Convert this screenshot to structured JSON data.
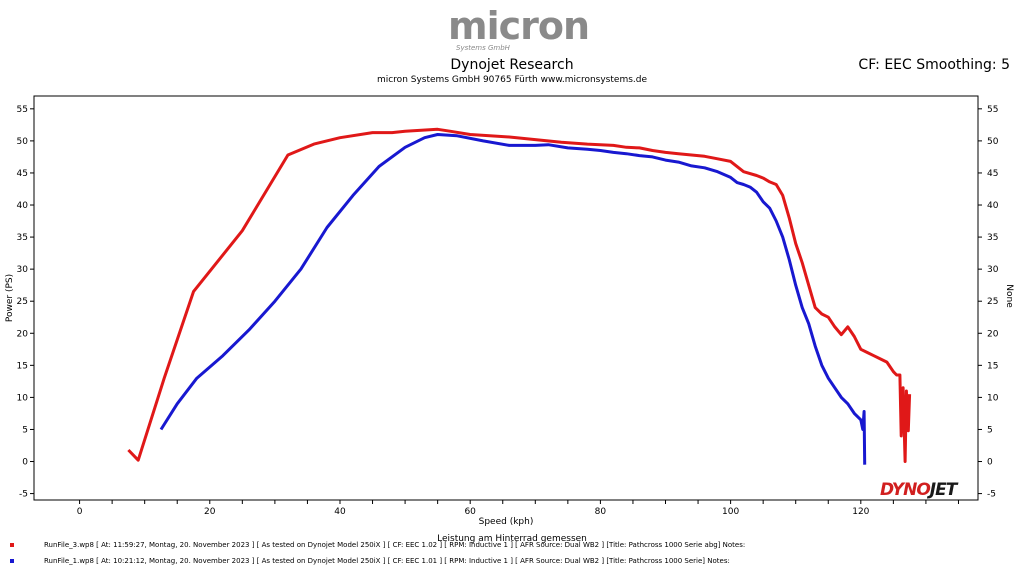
{
  "header": {
    "logo_text": "micron",
    "logo_subtext": "Systems GmbH",
    "title": "Dynojet Research",
    "subtitle": "micron Systems GmbH  90765 Fürth www.micronsystems.de",
    "cf_info": "CF: EEC Smoothing: 5"
  },
  "brand": {
    "part1": "DYNO",
    "part2": "JET"
  },
  "legend": {
    "caption": "Leistung am Hinterrad gemessen",
    "runs": [
      {
        "color": "#e01818",
        "text": "RunFile_3.wp8  [ At:  11:59:27, Montag, 20. November 2023 ]  [ As tested on Dynojet Model 250iX ]  [ CF: EEC 1.02 ]  [ RPM: Inductive 1 ]  [ AFR Source: Dual WB2 ]  [Title: Pathcross 1000 Serie abg]   Notes:"
      },
      {
        "color": "#1818d0",
        "text": "RunFile_1.wp8  [ At:  10:21:12, Montag, 20. November 2023 ]  [ As tested on Dynojet Model 250iX ]  [ CF: EEC 1.01 ]  [ RPM: Inductive 1 ]  [ AFR Source: Dual WB2 ]  [Title: Pathcross 1000 Serie]   Notes:"
      }
    ]
  },
  "chart_data": {
    "type": "line",
    "xlabel": "Speed (kph)",
    "ylabel": "Power (PS)",
    "y2label": "None",
    "xlim": [
      -7,
      138
    ],
    "ylim": [
      -6,
      57
    ],
    "xticks": [
      0,
      20,
      40,
      60,
      80,
      100,
      120
    ],
    "x_minor_step": 5,
    "yticks": [
      -5,
      0,
      5,
      10,
      15,
      20,
      25,
      30,
      35,
      40,
      45,
      50,
      55
    ],
    "grid": false,
    "series": [
      {
        "color": "#e01818",
        "points": [
          [
            7.5,
            1.8
          ],
          [
            9,
            0.2
          ],
          [
            13,
            13
          ],
          [
            17.5,
            26.5
          ],
          [
            25,
            36
          ],
          [
            32,
            47.8
          ],
          [
            36,
            49.5
          ],
          [
            40,
            50.5
          ],
          [
            45,
            51.3
          ],
          [
            48,
            51.3
          ],
          [
            50,
            51.5
          ],
          [
            55,
            51.8
          ],
          [
            57,
            51.5
          ],
          [
            60,
            51
          ],
          [
            63,
            50.8
          ],
          [
            66,
            50.6
          ],
          [
            70,
            50.2
          ],
          [
            74,
            49.8
          ],
          [
            78,
            49.5
          ],
          [
            82,
            49.3
          ],
          [
            84,
            49
          ],
          [
            86,
            48.9
          ],
          [
            88,
            48.5
          ],
          [
            90,
            48.2
          ],
          [
            92,
            48
          ],
          [
            94,
            47.8
          ],
          [
            96,
            47.6
          ],
          [
            98,
            47.2
          ],
          [
            100,
            46.8
          ],
          [
            102,
            45.2
          ],
          [
            104,
            44.6
          ],
          [
            105,
            44.2
          ],
          [
            106,
            43.6
          ],
          [
            107,
            43.2
          ],
          [
            108,
            41.5
          ],
          [
            109,
            38
          ],
          [
            110,
            34
          ],
          [
            111,
            31
          ],
          [
            112,
            27.5
          ],
          [
            113,
            24
          ],
          [
            114,
            23
          ],
          [
            115,
            22.5
          ],
          [
            116,
            21
          ],
          [
            117,
            19.8
          ],
          [
            118,
            21
          ],
          [
            119,
            19.5
          ],
          [
            120,
            17.5
          ],
          [
            121,
            17
          ],
          [
            122,
            16.5
          ],
          [
            123,
            16
          ],
          [
            124,
            15.5
          ],
          [
            125,
            14
          ],
          [
            125.5,
            13.5
          ],
          [
            126,
            13.5
          ],
          [
            126.2,
            4
          ],
          [
            126.5,
            11.5
          ],
          [
            126.8,
            0
          ],
          [
            127,
            11
          ],
          [
            127.3,
            4.8
          ],
          [
            127.5,
            10.5
          ]
        ]
      },
      {
        "color": "#1818d0",
        "points": [
          [
            12.5,
            5
          ],
          [
            15,
            9
          ],
          [
            18,
            13
          ],
          [
            22,
            16.5
          ],
          [
            26,
            20.5
          ],
          [
            30,
            25
          ],
          [
            34,
            30
          ],
          [
            38,
            36.5
          ],
          [
            42,
            41.5
          ],
          [
            46,
            46
          ],
          [
            50,
            49
          ],
          [
            53,
            50.5
          ],
          [
            55,
            51
          ],
          [
            58,
            50.8
          ],
          [
            62,
            50
          ],
          [
            66,
            49.3
          ],
          [
            70,
            49.3
          ],
          [
            72,
            49.4
          ],
          [
            75,
            48.9
          ],
          [
            78,
            48.7
          ],
          [
            80,
            48.5
          ],
          [
            82,
            48.2
          ],
          [
            84,
            48
          ],
          [
            86,
            47.7
          ],
          [
            88,
            47.5
          ],
          [
            90,
            47
          ],
          [
            92,
            46.7
          ],
          [
            94,
            46.1
          ],
          [
            96,
            45.8
          ],
          [
            98,
            45.2
          ],
          [
            100,
            44.3
          ],
          [
            101,
            43.5
          ],
          [
            102,
            43.2
          ],
          [
            103,
            42.8
          ],
          [
            104,
            42
          ],
          [
            105,
            40.5
          ],
          [
            106,
            39.5
          ],
          [
            107,
            37.5
          ],
          [
            108,
            35
          ],
          [
            109,
            31.5
          ],
          [
            110,
            27.5
          ],
          [
            111,
            24
          ],
          [
            112,
            21.5
          ],
          [
            113,
            18
          ],
          [
            114,
            15
          ],
          [
            115,
            13
          ],
          [
            116,
            11.5
          ],
          [
            117,
            10
          ],
          [
            118,
            9
          ],
          [
            119,
            7.5
          ],
          [
            120,
            6.5
          ],
          [
            120.3,
            5
          ],
          [
            120.5,
            7.8
          ],
          [
            120.6,
            -0.5
          ]
        ]
      }
    ]
  }
}
